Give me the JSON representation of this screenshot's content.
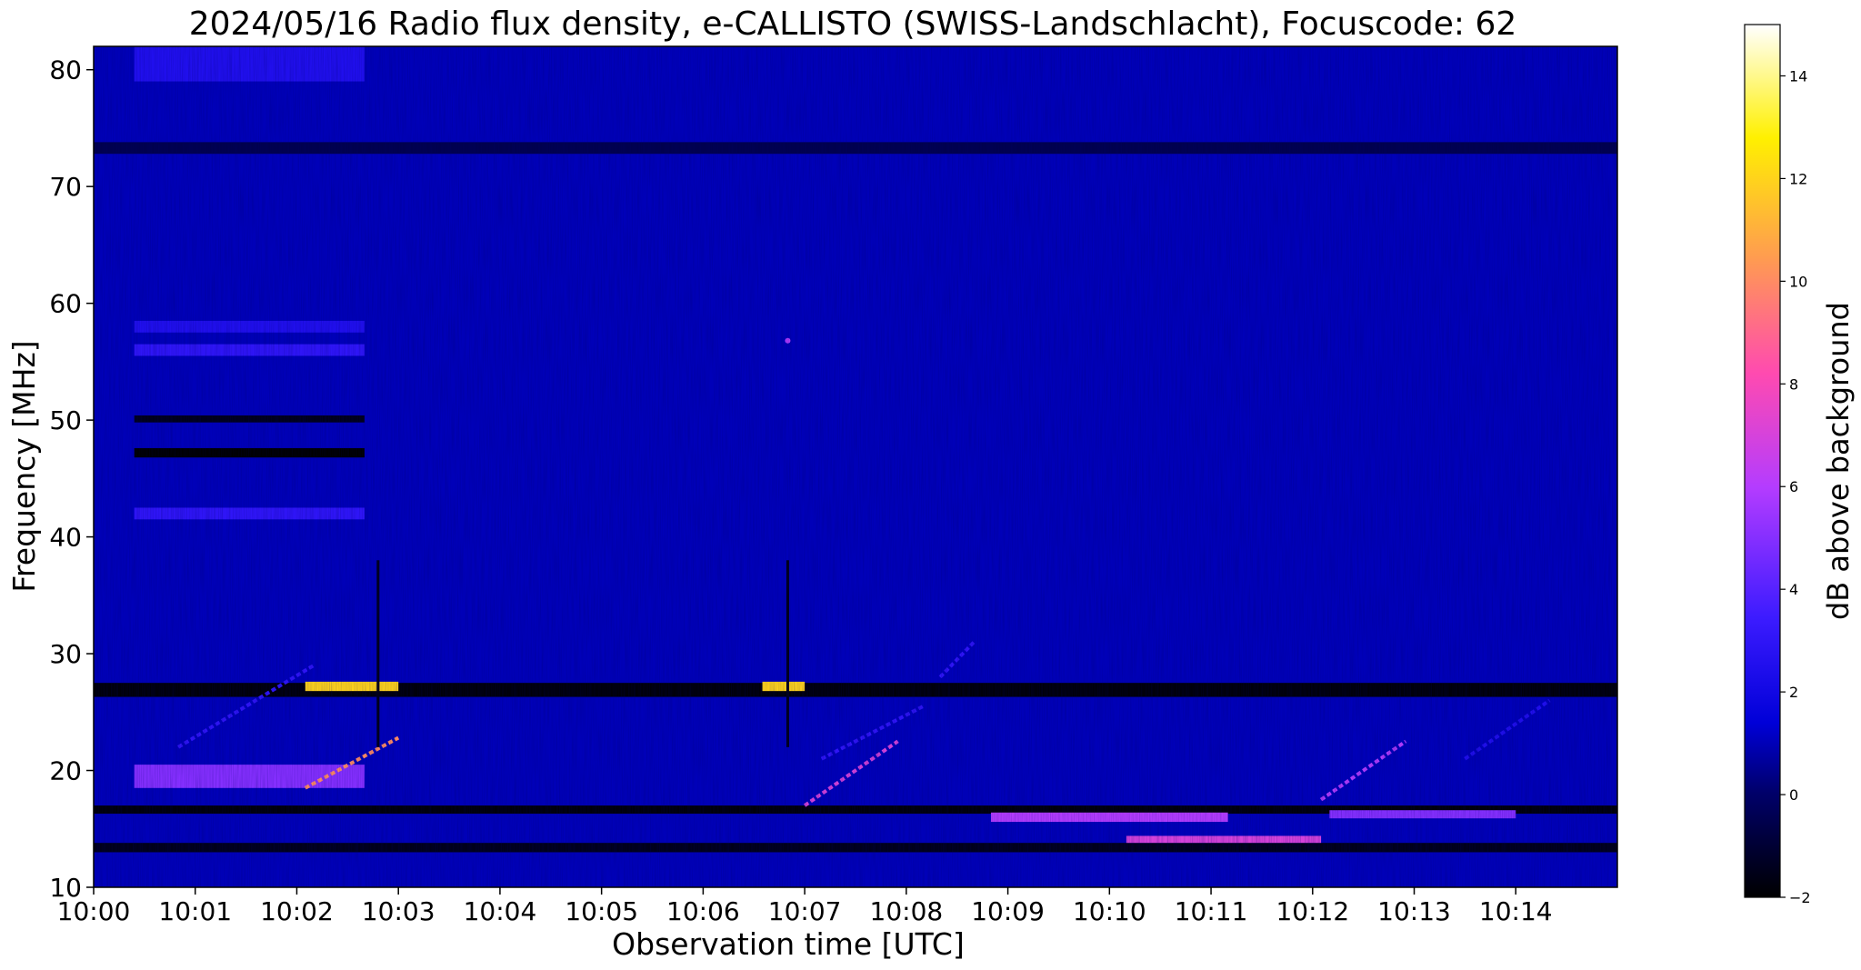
{
  "chart_data": {
    "type": "heatmap",
    "title": "2024/05/16  Radio flux density, e-CALLISTO (SWISS-Landschlacht), Focuscode: 62",
    "xlabel": "Observation time [UTC]",
    "ylabel": "Frequency [MHz]",
    "xlim": [
      "10:00",
      "10:15"
    ],
    "ylim": [
      10,
      82
    ],
    "x_tick_labels": [
      "10:00",
      "10:01",
      "10:02",
      "10:03",
      "10:04",
      "10:05",
      "10:06",
      "10:07",
      "10:08",
      "10:09",
      "10:10",
      "10:11",
      "10:12",
      "10:13",
      "10:14"
    ],
    "y_ticks": [
      10,
      20,
      30,
      40,
      50,
      60,
      70,
      80
    ],
    "colorbar": {
      "label": "dB above background",
      "range": [
        -2,
        15
      ],
      "ticks": [
        -2,
        0,
        2,
        4,
        6,
        8,
        10,
        12,
        14
      ],
      "colormap": "gnuplot2"
    },
    "background_level_db": 1.0,
    "features": [
      {
        "kind": "band",
        "t_start": "10:00:24",
        "t_end": "10:02:40",
        "f_low": 79,
        "f_high": 82,
        "db": 2.5
      },
      {
        "kind": "band",
        "t_start": "10:00:24",
        "t_end": "10:02:40",
        "f_low": 57.5,
        "f_high": 58.5,
        "db": 2.5
      },
      {
        "kind": "band",
        "t_start": "10:00:24",
        "t_end": "10:02:40",
        "f_low": 55.5,
        "f_high": 56.5,
        "db": 3
      },
      {
        "kind": "band",
        "t_start": "10:00:24",
        "t_end": "10:02:40",
        "f_low": 49.8,
        "f_high": 50.4,
        "db": -1.5
      },
      {
        "kind": "band",
        "t_start": "10:00:24",
        "t_end": "10:02:40",
        "f_low": 46.8,
        "f_high": 47.6,
        "db": -2
      },
      {
        "kind": "band",
        "t_start": "10:00:24",
        "t_end": "10:02:40",
        "f_low": 41.5,
        "f_high": 42.5,
        "db": 3
      },
      {
        "kind": "band",
        "t_start": "10:00:00",
        "t_end": "10:15:00",
        "f_low": 72.8,
        "f_high": 73.8,
        "db": -0.5
      },
      {
        "kind": "band",
        "t_start": "10:00:00",
        "t_end": "10:15:00",
        "f_low": 26.3,
        "f_high": 27.5,
        "db": -1.8
      },
      {
        "kind": "band",
        "t_start": "10:00:00",
        "t_end": "10:15:00",
        "f_low": 16.3,
        "f_high": 17.0,
        "db": -1.8
      },
      {
        "kind": "band",
        "t_start": "10:00:00",
        "t_end": "10:15:00",
        "f_low": 13.0,
        "f_high": 13.8,
        "db": -1.5
      },
      {
        "kind": "band",
        "t_start": "10:00:24",
        "t_end": "10:02:40",
        "f_low": 18.5,
        "f_high": 20.5,
        "db": 5
      },
      {
        "kind": "band",
        "t_start": "10:02:05",
        "t_end": "10:03:00",
        "f_low": 26.8,
        "f_high": 27.6,
        "db": 12
      },
      {
        "kind": "band",
        "t_start": "10:06:35",
        "t_end": "10:07:00",
        "f_low": 26.8,
        "f_high": 27.6,
        "db": 12
      },
      {
        "kind": "band",
        "t_start": "10:08:50",
        "t_end": "10:11:10",
        "f_low": 15.6,
        "f_high": 16.4,
        "db": 6
      },
      {
        "kind": "band",
        "t_start": "10:10:10",
        "t_end": "10:12:05",
        "f_low": 13.8,
        "f_high": 14.4,
        "db": 7
      },
      {
        "kind": "band",
        "t_start": "10:12:10",
        "t_end": "10:14:00",
        "f_low": 15.9,
        "f_high": 16.6,
        "db": 5
      },
      {
        "kind": "drift",
        "t_start": "10:02:05",
        "t_end": "10:03:00",
        "f_start": 18.5,
        "f_end": 22.8,
        "db": 10
      },
      {
        "kind": "drift",
        "t_start": "10:00:50",
        "t_end": "10:02:10",
        "f_start": 22.0,
        "f_end": 29.0,
        "db": 3
      },
      {
        "kind": "drift",
        "t_start": "10:07:00",
        "t_end": "10:07:55",
        "f_start": 17.0,
        "f_end": 22.5,
        "db": 7
      },
      {
        "kind": "drift",
        "t_start": "10:07:10",
        "t_end": "10:08:10",
        "f_start": 21.0,
        "f_end": 25.5,
        "db": 3
      },
      {
        "kind": "drift",
        "t_start": "10:12:05",
        "t_end": "10:12:55",
        "f_start": 17.5,
        "f_end": 22.5,
        "db": 6
      },
      {
        "kind": "drift",
        "t_start": "10:13:30",
        "t_end": "10:14:20",
        "f_start": 21.0,
        "f_end": 26.0,
        "db": 2.5
      },
      {
        "kind": "drift",
        "t_start": "10:08:20",
        "t_end": "10:08:40",
        "f_start": 28.0,
        "f_end": 31.0,
        "db": 3
      },
      {
        "kind": "spike",
        "t": "10:02:48",
        "f_low": 22.0,
        "f_high": 38.0,
        "db": -1.5
      },
      {
        "kind": "spike",
        "t": "10:06:50",
        "f_low": 22.0,
        "f_high": 38.0,
        "db": -1.5
      },
      {
        "kind": "spot",
        "t": "10:06:50",
        "f": 56.8,
        "db": 6
      }
    ]
  }
}
